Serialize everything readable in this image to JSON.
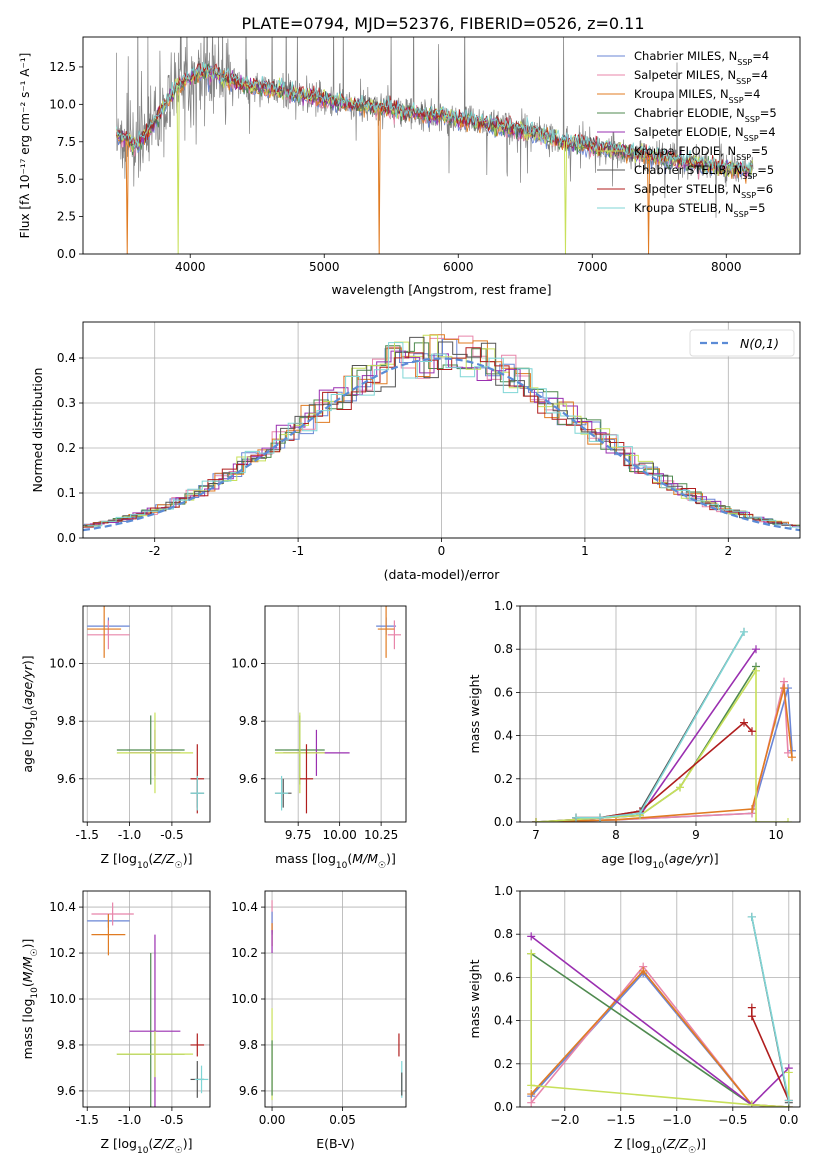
{
  "figure_title": "PLATE=0794, MJD=52376, FIBERID=0526, z=0.11",
  "colors": {
    "Chabrier MILES": "#6a86d6",
    "Salpeter MILES": "#e885aa",
    "Kroupa MILES": "#e07b22",
    "Chabrier ELODIE": "#4f8a4f",
    "Salpeter ELODIE": "#9a2fb0",
    "Kroupa ELODIE": "#c8e05a",
    "Chabrier STELIB": "#555555",
    "Salpeter STELIB": "#b01e1e",
    "Kroupa STELIB": "#7fd6d6",
    "data": "#808080",
    "normal": "#5b8bd6"
  },
  "chart_data": [
    {
      "id": "spectrum",
      "type": "line",
      "title": "PLATE=0794, MJD=52376, FIBERID=0526, z=0.11",
      "xlabel": "wavelength [Angstrom, rest frame]",
      "ylabel": "Flux [fλ 10⁻¹⁷ erg cm⁻² s⁻¹ A⁻¹]",
      "xlim": [
        3200,
        8550
      ],
      "ylim": [
        0,
        14.5
      ],
      "xticks": [
        4000,
        5000,
        6000,
        7000,
        8000
      ],
      "yticks": [
        0.0,
        2.5,
        5.0,
        7.5,
        10.0,
        12.5
      ],
      "legend_position": "top-right",
      "legend": [
        "Chabrier MILES, N_SSP=4",
        "Salpeter MILES, N_SSP=4",
        "Kroupa MILES, N_SSP=4",
        "Chabrier ELODIE, N_SSP=5",
        "Salpeter ELODIE, N_SSP=4",
        "Kroupa ELODIE, N_SSP=5",
        "Chabrier STELIB, N_SSP=5",
        "Salpeter STELIB, N_SSP=6",
        "Kroupa STELIB, N_SSP=5"
      ],
      "continuum": {
        "x": [
          3450,
          3600,
          3700,
          3800,
          3900,
          4000,
          4100,
          4200,
          4400,
          4600,
          4800,
          5000,
          5200,
          5400,
          5600,
          5800,
          6000,
          6200,
          6400,
          6600,
          6800,
          7000,
          7200,
          7400,
          7600,
          7800,
          8000,
          8200
        ],
        "y": [
          8.0,
          7.2,
          8.3,
          9.8,
          11.2,
          11.8,
          12.2,
          12.0,
          11.3,
          11.0,
          10.7,
          10.3,
          10.0,
          9.8,
          9.5,
          9.3,
          9.0,
          8.7,
          8.4,
          8.0,
          7.5,
          7.2,
          6.9,
          6.6,
          6.3,
          6.0,
          5.8,
          5.6
        ]
      },
      "dips": [
        {
          "model": "Kroupa MILES",
          "x": 3530,
          "y": 0.0
        },
        {
          "model": "Kroupa ELODIE",
          "x": 3910,
          "y": 0.0
        },
        {
          "model": "Kroupa MILES",
          "x": 5410,
          "y": 0.0
        },
        {
          "model": "Kroupa ELODIE",
          "x": 6800,
          "y": 0.0
        },
        {
          "model": "Kroupa MILES",
          "x": 7420,
          "y": 0.0
        }
      ]
    },
    {
      "id": "residuals",
      "type": "histogram",
      "xlabel": "(data-model)/error",
      "ylabel": "Normed distribution",
      "xlim": [
        -2.5,
        2.5
      ],
      "ylim": [
        0,
        0.48
      ],
      "xticks": [
        -2,
        -1,
        0,
        1,
        2
      ],
      "yticks": [
        0.0,
        0.1,
        0.2,
        0.3,
        0.4
      ],
      "legend": [
        "N(0,1)"
      ],
      "legend_position": "top-right",
      "bin_width": 0.1,
      "bin_start": -2.5
    },
    {
      "id": "age_vs_Z",
      "type": "scatter",
      "xlabel": "Z [log10(Z/Z☉)]",
      "ylabel": "age [log10(age/yr)]",
      "xlim": [
        -1.55,
        -0.05
      ],
      "ylim": [
        9.45,
        10.2
      ],
      "xticks": [
        -1.5,
        -1.0,
        -0.5
      ],
      "yticks": [
        9.6,
        9.8,
        10.0
      ],
      "points": [
        {
          "model": "Chabrier MILES",
          "x": -1.25,
          "y": 10.13,
          "xerr": 0.25,
          "yerr": 0.03
        },
        {
          "model": "Salpeter MILES",
          "x": -1.25,
          "y": 10.1,
          "xerr": 0.25,
          "yerr": 0.05
        },
        {
          "model": "Kroupa MILES",
          "x": -1.3,
          "y": 10.12,
          "xerr": 0.2,
          "yerr": 0.1
        },
        {
          "model": "Chabrier ELODIE",
          "x": -0.75,
          "y": 9.7,
          "xerr": 0.4,
          "yerr": 0.12
        },
        {
          "model": "Salpeter ELODIE",
          "x": -0.7,
          "y": 9.69,
          "xerr": 0.3,
          "yerr": 0.08
        },
        {
          "model": "Kroupa ELODIE",
          "x": -0.7,
          "y": 9.69,
          "xerr": 0.45,
          "yerr": 0.14
        },
        {
          "model": "Chabrier STELIB",
          "x": -0.2,
          "y": 9.55,
          "xerr": 0.08,
          "yerr": 0.05
        },
        {
          "model": "Salpeter STELIB",
          "x": -0.2,
          "y": 9.6,
          "xerr": 0.08,
          "yerr": 0.12
        },
        {
          "model": "Kroupa STELIB",
          "x": -0.2,
          "y": 9.55,
          "xerr": 0.08,
          "yerr": 0.06
        }
      ]
    },
    {
      "id": "age_vs_mass",
      "type": "scatter",
      "xlabel": "mass [log10(M/M☉)]",
      "ylabel": "",
      "xlim": [
        9.55,
        10.4
      ],
      "ylim": [
        9.45,
        10.2
      ],
      "xticks": [
        9.75,
        10.0,
        10.25
      ],
      "yticks": [
        9.6,
        9.8,
        10.0
      ],
      "points": [
        {
          "model": "Chabrier MILES",
          "x": 10.28,
          "y": 10.13,
          "xerr": 0.06,
          "yerr": 0.03
        },
        {
          "model": "Salpeter MILES",
          "x": 10.33,
          "y": 10.1,
          "xerr": 0.04,
          "yerr": 0.05
        },
        {
          "model": "Kroupa MILES",
          "x": 10.28,
          "y": 10.12,
          "xerr": 0.05,
          "yerr": 0.1
        },
        {
          "model": "Chabrier ELODIE",
          "x": 9.76,
          "y": 9.7,
          "xerr": 0.15,
          "yerr": 0.12
        },
        {
          "model": "Salpeter ELODIE",
          "x": 9.86,
          "y": 9.69,
          "xerr": 0.2,
          "yerr": 0.08
        },
        {
          "model": "Kroupa ELODIE",
          "x": 9.76,
          "y": 9.69,
          "xerr": 0.15,
          "yerr": 0.14
        },
        {
          "model": "Chabrier STELIB",
          "x": 9.66,
          "y": 9.55,
          "xerr": 0.05,
          "yerr": 0.05
        },
        {
          "model": "Salpeter STELIB",
          "x": 9.8,
          "y": 9.6,
          "xerr": 0.04,
          "yerr": 0.12
        },
        {
          "model": "Kroupa STELIB",
          "x": 9.65,
          "y": 9.55,
          "xerr": 0.04,
          "yerr": 0.06
        }
      ]
    },
    {
      "id": "weight_vs_age",
      "type": "line",
      "xlabel": "age [log10(age/yr)]",
      "ylabel": "mass weight",
      "xlim": [
        6.8,
        10.3
      ],
      "ylim": [
        0,
        1.0
      ],
      "xticks": [
        7,
        8,
        9,
        10
      ],
      "yticks": [
        0.0,
        0.2,
        0.4,
        0.6,
        0.8,
        1.0
      ],
      "series": [
        {
          "model": "Chabrier MILES",
          "x": [
            7.0,
            8.0,
            9.7,
            10.15,
            10.2
          ],
          "y": [
            0.0,
            0.01,
            0.04,
            0.62,
            0.33
          ]
        },
        {
          "model": "Salpeter MILES",
          "x": [
            7.0,
            8.0,
            9.7,
            10.1,
            10.15
          ],
          "y": [
            0.0,
            0.01,
            0.04,
            0.65,
            0.32
          ]
        },
        {
          "model": "Kroupa MILES",
          "x": [
            7.0,
            8.0,
            9.7,
            10.1,
            10.2
          ],
          "y": [
            0.0,
            0.01,
            0.06,
            0.62,
            0.3
          ]
        },
        {
          "model": "Chabrier ELODIE",
          "x": [
            7.0,
            8.3,
            8.8,
            9.75
          ],
          "y": [
            0.0,
            0.03,
            0.16,
            0.72
          ]
        },
        {
          "model": "Salpeter ELODIE",
          "x": [
            7.0,
            8.3,
            9.75
          ],
          "y": [
            0.0,
            0.03,
            0.8
          ]
        },
        {
          "model": "Kroupa ELODIE",
          "x": [
            7.0,
            8.3,
            8.8,
            9.75,
            9.75,
            10.15
          ],
          "y": [
            0.0,
            0.03,
            0.16,
            0.7,
            0.0,
            0.0
          ]
        },
        {
          "model": "Chabrier STELIB",
          "x": [
            7.5,
            7.8,
            8.3,
            9.6
          ],
          "y": [
            0.02,
            0.02,
            0.05,
            0.88
          ]
        },
        {
          "model": "Salpeter STELIB",
          "x": [
            7.5,
            7.8,
            8.3,
            9.6,
            9.7
          ],
          "y": [
            0.02,
            0.02,
            0.05,
            0.46,
            0.42
          ]
        },
        {
          "model": "Kroupa STELIB",
          "x": [
            7.5,
            7.8,
            8.3,
            9.6
          ],
          "y": [
            0.02,
            0.02,
            0.04,
            0.88
          ]
        }
      ]
    },
    {
      "id": "mass_vs_Z",
      "type": "scatter",
      "xlabel": "Z [log10(Z/Z☉)]",
      "ylabel": "mass [log10(M/M☉)]",
      "xlim": [
        -1.55,
        -0.05
      ],
      "ylim": [
        9.53,
        10.47
      ],
      "xticks": [
        -1.5,
        -1.0,
        -0.5
      ],
      "yticks": [
        9.6,
        9.8,
        10.0,
        10.2,
        10.4
      ],
      "points": [
        {
          "model": "Chabrier MILES",
          "x": -1.25,
          "y": 10.34,
          "xerr": 0.25,
          "yerr": 0.03
        },
        {
          "model": "Salpeter MILES",
          "x": -1.2,
          "y": 10.37,
          "xerr": 0.25,
          "yerr": 0.05
        },
        {
          "model": "Kroupa MILES",
          "x": -1.25,
          "y": 10.28,
          "xerr": 0.2,
          "yerr": 0.09
        },
        {
          "model": "Chabrier ELODIE",
          "x": -0.75,
          "y": 9.76,
          "xerr": 0.4,
          "yerr": 0.44
        },
        {
          "model": "Salpeter ELODIE",
          "x": -0.7,
          "y": 9.86,
          "xerr": 0.3,
          "yerr": 0.42
        },
        {
          "model": "Kroupa ELODIE",
          "x": -0.7,
          "y": 9.76,
          "xerr": 0.45,
          "yerr": 0.1
        },
        {
          "model": "Chabrier STELIB",
          "x": -0.2,
          "y": 9.65,
          "xerr": 0.08,
          "yerr": 0.08
        },
        {
          "model": "Salpeter STELIB",
          "x": -0.2,
          "y": 9.8,
          "xerr": 0.08,
          "yerr": 0.05
        },
        {
          "model": "Kroupa STELIB",
          "x": -0.15,
          "y": 9.65,
          "xerr": 0.08,
          "yerr": 0.06
        }
      ]
    },
    {
      "id": "mass_vs_EBV",
      "type": "scatter",
      "xlabel": "E(B-V)",
      "ylabel": "",
      "xlim": [
        -0.005,
        0.095
      ],
      "ylim": [
        9.53,
        10.47
      ],
      "xticks": [
        0.0,
        0.05
      ],
      "yticks": [
        9.6,
        9.8,
        10.0,
        10.2,
        10.4
      ],
      "points": [
        {
          "model": "Salpeter MILES",
          "x": 0.0,
          "y": 10.36,
          "xerr": 0,
          "yerr": 0.07
        },
        {
          "model": "Chabrier MILES",
          "x": 0.0,
          "y": 10.33,
          "xerr": 0,
          "yerr": 0.05
        },
        {
          "model": "Kroupa MILES",
          "x": 0.0,
          "y": 10.28,
          "xerr": 0,
          "yerr": 0.05
        },
        {
          "model": "Salpeter ELODIE",
          "x": 0.0,
          "y": 10.25,
          "xerr": 0,
          "yerr": 0.05
        },
        {
          "model": "Kroupa ELODIE",
          "x": 0.0,
          "y": 9.76,
          "xerr": 0,
          "yerr": 0.2
        },
        {
          "model": "Chabrier ELODIE",
          "x": 0.0,
          "y": 9.7,
          "xerr": 0,
          "yerr": 0.12
        },
        {
          "model": "Salpeter STELIB",
          "x": 0.09,
          "y": 9.8,
          "xerr": 0,
          "yerr": 0.05
        },
        {
          "model": "Kroupa STELIB",
          "x": 0.092,
          "y": 9.65,
          "xerr": 0,
          "yerr": 0.08
        },
        {
          "model": "Chabrier STELIB",
          "x": 0.092,
          "y": 9.63,
          "xerr": 0,
          "yerr": 0.05
        }
      ]
    },
    {
      "id": "weight_vs_Z",
      "type": "line",
      "xlabel": "Z [log10(Z/Z☉)]",
      "ylabel": "mass weight",
      "xlim": [
        -2.4,
        0.1
      ],
      "ylim": [
        0,
        1.0
      ],
      "xticks": [
        -2.0,
        -1.5,
        -1.0,
        -0.5,
        0.0
      ],
      "yticks": [
        0.0,
        0.2,
        0.4,
        0.6,
        0.8,
        1.0
      ],
      "series": [
        {
          "model": "Chabrier MILES",
          "x": [
            -2.3,
            -1.3,
            -0.33,
            0.0
          ],
          "y": [
            0.05,
            0.62,
            0.01,
            0.0
          ]
        },
        {
          "model": "Salpeter MILES",
          "x": [
            -2.3,
            -1.3,
            -0.33,
            0.0
          ],
          "y": [
            0.02,
            0.65,
            0.01,
            0.0
          ]
        },
        {
          "model": "Kroupa MILES",
          "x": [
            -2.3,
            -1.3,
            -0.33,
            0.0
          ],
          "y": [
            0.06,
            0.63,
            0.01,
            0.0
          ]
        },
        {
          "model": "Chabrier ELODIE",
          "x": [
            -2.3,
            -0.33
          ],
          "y": [
            0.71,
            0.01
          ]
        },
        {
          "model": "Salpeter ELODIE",
          "x": [
            -2.3,
            -0.33,
            0.0
          ],
          "y": [
            0.79,
            0.01,
            0.18
          ]
        },
        {
          "model": "Kroupa ELODIE",
          "x": [
            -2.3,
            -2.3,
            -0.33,
            0.0,
            0.0
          ],
          "y": [
            0.71,
            0.1,
            0.01,
            0.0,
            0.16
          ]
        },
        {
          "model": "Chabrier STELIB",
          "x": [
            -0.33,
            0.0
          ],
          "y": [
            0.88,
            0.02
          ]
        },
        {
          "model": "Salpeter STELIB",
          "x": [
            -0.33,
            -0.33,
            0.0
          ],
          "y": [
            0.46,
            0.42,
            0.03
          ]
        },
        {
          "model": "Kroupa STELIB",
          "x": [
            -0.33,
            0.0
          ],
          "y": [
            0.88,
            0.03
          ]
        }
      ]
    }
  ]
}
